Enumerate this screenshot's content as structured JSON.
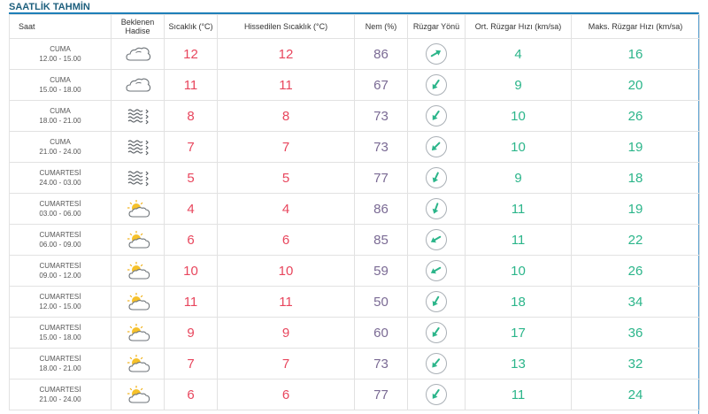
{
  "title": "SAATLİK TAHMİN",
  "headers": {
    "saat": "Saat",
    "hadise_1": "Beklenen",
    "hadise_2": "Hadise",
    "sicaklik": "Sıcaklık (°C)",
    "hissedilen": "Hissedilen Sıcaklık (°C)",
    "nem": "Nem (%)",
    "ruzgar_yonu": "Rüzgar Yönü",
    "ort_ruzgar": "Ort. Rüzgar Hızı (km/sa)",
    "maks_ruzgar": "Maks. Rüzgar Hızı (km/sa)"
  },
  "colors": {
    "title": "#1d5f7d",
    "temp": "#e8465d",
    "humidity": "#7a6a94",
    "wind": "#2bb58a",
    "arrow": "#2bb58a"
  },
  "rows": [
    {
      "day": "CUMA",
      "time": "12.00 - 15.00",
      "icon": "cloudy-icon",
      "temp": "12",
      "feels": "12",
      "humidity": "86",
      "wind_dir_deg": 60,
      "wind_avg": "4",
      "wind_max": "16"
    },
    {
      "day": "CUMA",
      "time": "15.00 - 18.00",
      "icon": "cloudy-icon",
      "temp": "11",
      "feels": "11",
      "humidity": "67",
      "wind_dir_deg": 215,
      "wind_avg": "9",
      "wind_max": "20"
    },
    {
      "day": "CUMA",
      "time": "18.00 - 21.00",
      "icon": "fog-icon",
      "temp": "8",
      "feels": "8",
      "humidity": "73",
      "wind_dir_deg": 215,
      "wind_avg": "10",
      "wind_max": "26"
    },
    {
      "day": "CUMA",
      "time": "21.00 - 24.00",
      "icon": "fog-icon",
      "temp": "7",
      "feels": "7",
      "humidity": "73",
      "wind_dir_deg": 225,
      "wind_avg": "10",
      "wind_max": "19"
    },
    {
      "day": "CUMARTESİ",
      "time": "24.00 - 03.00",
      "icon": "fog-icon",
      "temp": "5",
      "feels": "5",
      "humidity": "77",
      "wind_dir_deg": 205,
      "wind_avg": "9",
      "wind_max": "18"
    },
    {
      "day": "CUMARTESİ",
      "time": "03.00 - 06.00",
      "icon": "partly-cloudy-icon",
      "temp": "4",
      "feels": "4",
      "humidity": "86",
      "wind_dir_deg": 200,
      "wind_avg": "11",
      "wind_max": "19"
    },
    {
      "day": "CUMARTESİ",
      "time": "06.00 - 09.00",
      "icon": "partly-cloudy-icon",
      "temp": "6",
      "feels": "6",
      "humidity": "85",
      "wind_dir_deg": 240,
      "wind_avg": "11",
      "wind_max": "22"
    },
    {
      "day": "CUMARTESİ",
      "time": "09.00 - 12.00",
      "icon": "partly-cloudy-icon",
      "temp": "10",
      "feels": "10",
      "humidity": "59",
      "wind_dir_deg": 240,
      "wind_avg": "10",
      "wind_max": "26"
    },
    {
      "day": "CUMARTESİ",
      "time": "12.00 - 15.00",
      "icon": "partly-cloudy-icon",
      "temp": "11",
      "feels": "11",
      "humidity": "50",
      "wind_dir_deg": 210,
      "wind_avg": "18",
      "wind_max": "34"
    },
    {
      "day": "CUMARTESİ",
      "time": "15.00 - 18.00",
      "icon": "partly-cloudy-icon",
      "temp": "9",
      "feels": "9",
      "humidity": "60",
      "wind_dir_deg": 215,
      "wind_avg": "17",
      "wind_max": "36"
    },
    {
      "day": "CUMARTESİ",
      "time": "18.00 - 21.00",
      "icon": "partly-cloudy-icon",
      "temp": "7",
      "feels": "7",
      "humidity": "73",
      "wind_dir_deg": 220,
      "wind_avg": "13",
      "wind_max": "32"
    },
    {
      "day": "CUMARTESİ",
      "time": "21.00 - 24.00",
      "icon": "partly-cloudy-icon",
      "temp": "6",
      "feels": "6",
      "humidity": "77",
      "wind_dir_deg": 215,
      "wind_avg": "11",
      "wind_max": "24"
    }
  ]
}
